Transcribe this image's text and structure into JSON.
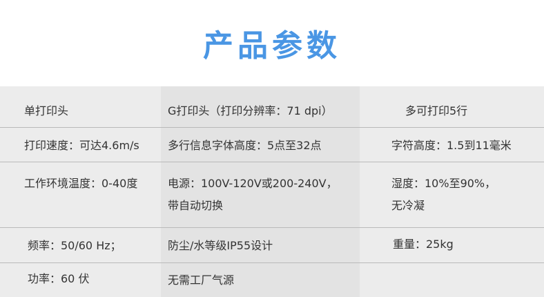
{
  "title": "产品参数",
  "rows": [
    [
      "单打印头",
      "G打印头（打印分辨率：71 dpi）",
      "多可打印5行"
    ],
    [
      "打印速度：可达4.6m/s",
      "多行信息字体高度：5点至32点",
      "字符高度：1.5到11毫米"
    ],
    [
      "工作环境温度：0-40度",
      "电源：100V-120V或200-240V，",
      "湿度：10%至90%，"
    ],
    [
      "",
      "带自动切换",
      "无冷凝"
    ],
    [
      "频率：50/60 Hz；",
      "防尘/水等级IP55设计",
      "重量：25kg"
    ],
    [
      "功率：60 伏",
      "无需工厂气源",
      ""
    ]
  ]
}
